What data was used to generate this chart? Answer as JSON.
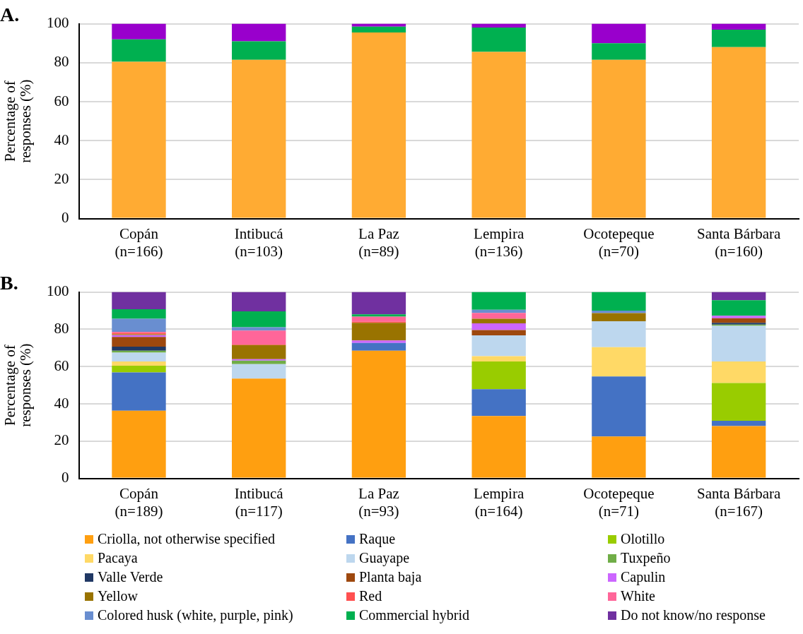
{
  "chart_data": [
    {
      "type": "bar",
      "title": "A.",
      "ylabel": "Percentage of responses (%)",
      "stacked": true,
      "categories": [
        "Copán (n=166)",
        "Intibucá (n=103)",
        "La Paz (n=89)",
        "Lempira (n=136)",
        "Ocotepeque (n=70)",
        "Santa Bárbara (n=160)"
      ],
      "ylim": [
        0,
        100
      ],
      "yticks": [
        0,
        20,
        40,
        60,
        80,
        100
      ],
      "grid": "y",
      "legend": false,
      "series": [
        {
          "color": "#ffab33",
          "values": [
            80.5,
            81.5,
            95.5,
            85.5,
            81.5,
            88
          ]
        },
        {
          "color": "#00b050",
          "values": [
            11.5,
            9.5,
            3,
            12.5,
            8.5,
            9
          ]
        },
        {
          "color": "#9900cc",
          "values": [
            8,
            9,
            1.5,
            2,
            10,
            3
          ]
        }
      ]
    },
    {
      "type": "bar",
      "title": "B.",
      "ylabel": "Percentage of responses (%)",
      "stacked": true,
      "categories": [
        "Copán (n=189)",
        "Intibucá (n=117)",
        "La Paz (n=93)",
        "Lempira (n=164)",
        "Ocotepeque (n=71)",
        "Santa Bárbara (n=167)"
      ],
      "ylim": [
        0,
        100
      ],
      "yticks": [
        0,
        20,
        40,
        60,
        80,
        100
      ],
      "grid": "y",
      "legend": "bottom",
      "series": [
        {
          "name": "Criolla, not otherwise specified",
          "color": "#ff9f10",
          "values": [
            36.3,
            53.5,
            68.5,
            33.5,
            22.5,
            28.1
          ]
        },
        {
          "name": "Raque",
          "color": "#4472c4",
          "values": [
            20.6,
            0,
            4.2,
            14.4,
            32.2,
            2.8
          ]
        },
        {
          "name": "Olotillo",
          "color": "#99cc00",
          "values": [
            3.6,
            0,
            0,
            14.8,
            0,
            20.3
          ]
        },
        {
          "name": "Pacaya",
          "color": "#ffd966",
          "values": [
            2.2,
            0,
            0,
            2.9,
            15.7,
            11.5
          ]
        },
        {
          "name": "Guayape",
          "color": "#bdd7ee",
          "values": [
            4.8,
            7.8,
            0,
            11.1,
            13.9,
            19.2
          ]
        },
        {
          "name": "Tuxpeño",
          "color": "#70ad47",
          "values": [
            1,
            1.9,
            0,
            0,
            0,
            0.6
          ]
        },
        {
          "name": "Valle Verde",
          "color": "#203864",
          "values": [
            2.2,
            0,
            0,
            0,
            0,
            1
          ]
        },
        {
          "name": "Planta baja",
          "color": "#9e480e",
          "values": [
            5.2,
            0,
            0,
            2.9,
            0,
            2.4
          ]
        },
        {
          "name": "Capulin",
          "color": "#cc66ff",
          "values": [
            0.9,
            0.8,
            1.3,
            3.6,
            0,
            1.4
          ]
        },
        {
          "name": "Yellow",
          "color": "#997300",
          "values": [
            0.5,
            7.5,
            9.5,
            2.4,
            4.4,
            0
          ]
        },
        {
          "name": "Red",
          "color": "#ff5050",
          "values": [
            0.8,
            0.3,
            0.5,
            0,
            0,
            0
          ]
        },
        {
          "name": "White",
          "color": "#ff6699",
          "values": [
            0.5,
            7.5,
            2.8,
            3.2,
            0,
            0
          ]
        },
        {
          "name": "Colored husk (white, purple, pink)",
          "color": "#698ed0",
          "values": [
            7,
            1.8,
            0,
            1.7,
            1.3,
            0
          ]
        },
        {
          "name": "Commercial hybrid",
          "color": "#00b050",
          "values": [
            5.2,
            8.5,
            1.2,
            9.5,
            10,
            8.3
          ]
        },
        {
          "name": "Do not know/no response",
          "color": "#7030a0",
          "values": [
            9.2,
            10.4,
            12,
            0,
            0,
            4.4
          ]
        }
      ]
    }
  ]
}
